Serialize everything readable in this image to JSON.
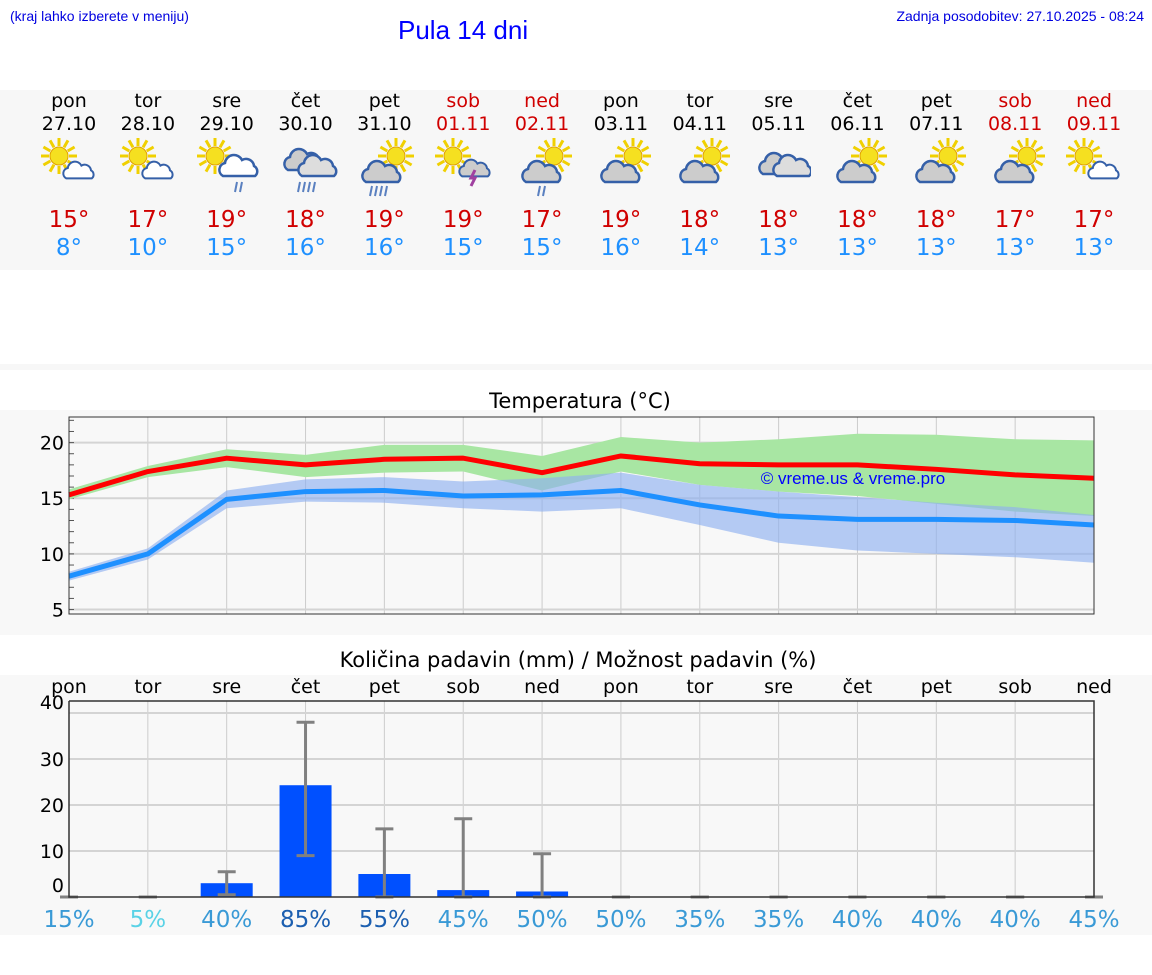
{
  "header": {
    "hint": "(kraj lahko izberete v meniju)",
    "title": "Pula 14 dni",
    "updated": "Zadnja posodobitev: 27.10.2025 - 08:24"
  },
  "days": [
    {
      "name": "pon",
      "date": "27.10",
      "weekend": false,
      "icon": "sun-cloud",
      "max": "15°",
      "min": "8°"
    },
    {
      "name": "tor",
      "date": "28.10",
      "weekend": false,
      "icon": "sun-cloud",
      "max": "17°",
      "min": "10°"
    },
    {
      "name": "sre",
      "date": "29.10",
      "weekend": false,
      "icon": "sun-cloud-rain",
      "max": "19°",
      "min": "15°"
    },
    {
      "name": "čet",
      "date": "30.10",
      "weekend": false,
      "icon": "cloud-rain",
      "max": "18°",
      "min": "16°"
    },
    {
      "name": "pet",
      "date": "31.10",
      "weekend": false,
      "icon": "cloud-sun-heavy-rain",
      "max": "19°",
      "min": "16°"
    },
    {
      "name": "sob",
      "date": "01.11",
      "weekend": true,
      "icon": "sun-cloud-lightning",
      "max": "19°",
      "min": "15°"
    },
    {
      "name": "ned",
      "date": "02.11",
      "weekend": true,
      "icon": "cloud-sun-rain",
      "max": "17°",
      "min": "15°"
    },
    {
      "name": "pon",
      "date": "03.11",
      "weekend": false,
      "icon": "cloud-sun",
      "max": "19°",
      "min": "16°"
    },
    {
      "name": "tor",
      "date": "04.11",
      "weekend": false,
      "icon": "cloud-sun",
      "max": "18°",
      "min": "14°"
    },
    {
      "name": "sre",
      "date": "05.11",
      "weekend": false,
      "icon": "cloudy",
      "max": "18°",
      "min": "13°"
    },
    {
      "name": "čet",
      "date": "06.11",
      "weekend": false,
      "icon": "cloud-sun",
      "max": "18°",
      "min": "13°"
    },
    {
      "name": "pet",
      "date": "07.11",
      "weekend": false,
      "icon": "cloud-sun",
      "max": "18°",
      "min": "13°"
    },
    {
      "name": "sob",
      "date": "08.11",
      "weekend": true,
      "icon": "cloud-sun",
      "max": "17°",
      "min": "13°"
    },
    {
      "name": "ned",
      "date": "09.11",
      "weekend": true,
      "icon": "sun-cloud",
      "max": "17°",
      "min": "13°"
    }
  ],
  "chart_data": [
    {
      "type": "line",
      "title": "Temperatura (°C)",
      "watermark": "© vreme.us & vreme.pro",
      "ylim": [
        4.6,
        22.3
      ],
      "yticks": [
        "5",
        "10",
        "15",
        "20"
      ],
      "ytick_values": [
        5,
        10,
        15,
        20
      ],
      "series": [
        {
          "name": "max",
          "color": "#ff0000",
          "values": [
            15.3,
            17.4,
            18.6,
            18.0,
            18.5,
            18.6,
            17.3,
            18.8,
            18.1,
            18.0,
            18.0,
            17.6,
            17.1,
            16.8
          ],
          "band_low": [
            14.9,
            16.9,
            17.8,
            16.9,
            17.3,
            17.4,
            15.7,
            17.4,
            16.2,
            15.6,
            15.2,
            14.5,
            13.8,
            13.4
          ],
          "band_high": [
            15.8,
            17.9,
            19.4,
            18.9,
            19.8,
            19.8,
            18.8,
            20.5,
            20.0,
            20.3,
            20.8,
            20.7,
            20.3,
            20.2
          ],
          "band_color": "#a8e6a3"
        },
        {
          "name": "min",
          "color": "#1e90ff",
          "values": [
            8.0,
            10.0,
            14.9,
            15.6,
            15.7,
            15.2,
            15.3,
            15.7,
            14.4,
            13.4,
            13.1,
            13.1,
            13.0,
            12.6
          ],
          "band_low": [
            7.6,
            9.5,
            14.1,
            14.7,
            14.6,
            14.1,
            13.8,
            14.1,
            12.6,
            11.0,
            10.3,
            10.0,
            9.7,
            9.2
          ],
          "band_high": [
            8.4,
            10.5,
            15.7,
            16.7,
            16.9,
            16.5,
            16.8,
            17.3,
            16.2,
            15.6,
            15.1,
            14.6,
            14.2,
            13.5
          ],
          "band_color": "#8fb1f0"
        }
      ]
    },
    {
      "type": "bar",
      "title": "Količina padavin (mm) / Možnost padavin (%)",
      "categories": [
        "pon",
        "tor",
        "sre",
        "čet",
        "pet",
        "sob",
        "ned",
        "pon",
        "tor",
        "sre",
        "čet",
        "pet",
        "sob",
        "ned"
      ],
      "values": [
        0,
        0,
        3,
        24.3,
        5,
        1.5,
        1.2,
        0,
        0,
        0,
        0,
        0,
        0,
        0
      ],
      "err_low": [
        0,
        0,
        0.5,
        9,
        0,
        0,
        0,
        0,
        0,
        0,
        0,
        0,
        0,
        0
      ],
      "err_high": [
        0,
        0,
        5.5,
        38,
        14.8,
        17,
        9.4,
        0,
        0,
        0,
        0,
        0,
        0,
        0
      ],
      "ylim": [
        0,
        40
      ],
      "yticks": [
        "0",
        "10",
        "20",
        "30",
        "40"
      ],
      "ytick_values": [
        0,
        10,
        20,
        30,
        40
      ],
      "probability": [
        "15%",
        "5%",
        "40%",
        "85%",
        "55%",
        "45%",
        "50%",
        "50%",
        "35%",
        "35%",
        "40%",
        "40%",
        "40%",
        "45%"
      ],
      "probability_colors": [
        "#3a9ad6",
        "#5ad2e6",
        "#3a9ad6",
        "#1c5fb0",
        "#1c5fb0",
        "#3a9ad6",
        "#3a9ad6",
        "#3a9ad6",
        "#3a9ad6",
        "#3a9ad6",
        "#3a9ad6",
        "#3a9ad6",
        "#3a9ad6",
        "#3a9ad6"
      ],
      "bar_color": "#0050ff"
    }
  ]
}
